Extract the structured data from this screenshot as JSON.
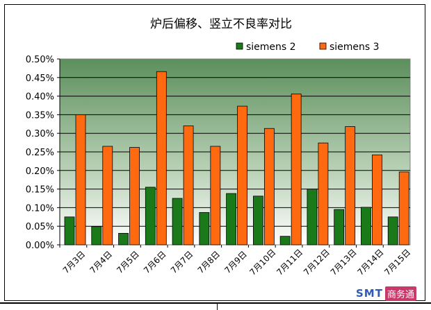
{
  "chart_data": {
    "type": "bar",
    "title": "炉后偏移、竖立不良率对比",
    "categories": [
      "7月3日",
      "7月4日",
      "7月5日",
      "7月6日",
      "7月7日",
      "7月8日",
      "7月9日",
      "7月10日",
      "7月11日",
      "7月12日",
      "7月13日",
      "7月14日",
      "7月15日"
    ],
    "series": [
      {
        "name": "siemens 2",
        "color": "#1a7a1a",
        "values": [
          0.075,
          0.049,
          0.031,
          0.155,
          0.125,
          0.087,
          0.138,
          0.131,
          0.023,
          0.15,
          0.095,
          0.101,
          0.075
        ]
      },
      {
        "name": "siemens 3",
        "color": "#ff6a10",
        "values": [
          0.35,
          0.265,
          0.262,
          0.466,
          0.32,
          0.265,
          0.373,
          0.313,
          0.406,
          0.274,
          0.318,
          0.242,
          0.196
        ]
      }
    ],
    "ylim": [
      0,
      0.5
    ],
    "yticks": [
      "0.00%",
      "0.05%",
      "0.10%",
      "0.15%",
      "0.20%",
      "0.25%",
      "0.30%",
      "0.35%",
      "0.40%",
      "0.45%",
      "0.50%"
    ],
    "ylabel": "",
    "xlabel": "",
    "grid": true,
    "legend": "top-right"
  },
  "watermark": {
    "brand": "SMT",
    "text": "商务通"
  }
}
